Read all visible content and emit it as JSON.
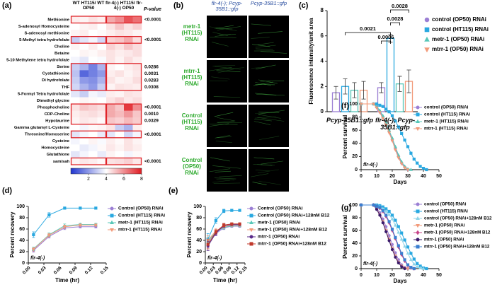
{
  "chart_data": [
    {
      "type": "heatmap",
      "panel_label": "(a)",
      "column_groups": [
        "WT HT115/ WT OP50",
        "flr-4(-) HT115/ flr-4(-) OP50"
      ],
      "p_value_header": "P-value",
      "rows": [
        "Methionine",
        "S-adenosyl Homocysteine",
        "S-adenosyl methionine",
        "5-Methyl tetra hydrofolate",
        "Choline",
        "Betaine",
        "5-10 Methylene tetra hydrofolate",
        "Serine",
        "Cystathionine",
        "Di hydrofolate",
        "THF",
        "5-Formyl Tetra hydrofolate",
        "Dimethyl glycine",
        "Phosphocholine",
        "CDP-Choline",
        "Hypotaurine",
        "Gamma glutamyl L-Cysteine",
        "Threonine/Homoserine",
        "Cysteine",
        "Homocysteine",
        "Glutathione",
        "sam/sah"
      ],
      "values": [
        [
          4.3,
          4.2,
          4.5,
          4.3,
          5.5,
          6.0,
          7.0,
          6.5
        ],
        [
          4.0,
          4.2,
          4.3,
          4.0,
          4.5,
          5.0,
          4.5,
          4.8
        ],
        [
          4.2,
          4.3,
          4.0,
          4.1,
          4.3,
          4.5,
          4.4,
          4.2
        ],
        [
          3.0,
          3.5,
          3.8,
          3.2,
          4.8,
          5.0,
          5.5,
          4.6
        ],
        [
          4.2,
          4.0,
          4.3,
          4.0,
          4.8,
          4.5,
          5.0,
          4.6
        ],
        [
          4.0,
          4.2,
          4.1,
          4.3,
          4.5,
          4.3,
          4.4,
          4.6
        ],
        [
          3.8,
          3.5,
          4.0,
          3.9,
          4.5,
          4.2,
          4.6,
          4.3
        ],
        [
          3.0,
          2.5,
          1.5,
          2.5,
          4.2,
          4.0,
          4.3,
          4.5
        ],
        [
          2.8,
          1.0,
          1.5,
          2.0,
          4.3,
          4.5,
          4.2,
          4.4
        ],
        [
          3.0,
          2.0,
          1.8,
          2.5,
          4.5,
          4.2,
          4.3,
          4.6
        ],
        [
          3.2,
          2.5,
          2.0,
          3.0,
          4.2,
          4.5,
          4.4,
          4.3
        ],
        [
          3.5,
          3.0,
          3.8,
          3.6,
          4.3,
          4.2,
          4.5,
          4.4
        ],
        [
          4.0,
          4.2,
          4.1,
          4.0,
          4.5,
          4.8,
          4.4,
          4.6
        ],
        [
          4.5,
          5.0,
          4.8,
          4.6,
          5.5,
          5.0,
          7.5,
          6.0
        ],
        [
          4.3,
          4.5,
          4.6,
          4.4,
          5.5,
          5.2,
          5.8,
          5.0
        ],
        [
          4.2,
          4.4,
          4.3,
          4.1,
          5.0,
          4.8,
          5.2,
          4.9
        ],
        [
          4.0,
          3.8,
          4.1,
          4.2,
          4.5,
          3.0,
          2.5,
          4.3
        ],
        [
          3.5,
          3.8,
          4.0,
          3.6,
          3.5,
          4.0,
          3.2,
          3.8
        ],
        [
          3.8,
          4.0,
          4.2,
          3.9,
          4.3,
          4.1,
          4.5,
          4.2
        ],
        [
          4.0,
          3.6,
          3.8,
          4.1,
          4.4,
          4.2,
          4.5,
          4.3
        ],
        [
          3.5,
          3.8,
          4.0,
          3.6,
          4.2,
          4.0,
          3.8,
          4.1
        ],
        [
          4.2,
          4.4,
          4.3,
          4.1,
          4.5,
          4.6,
          4.8,
          4.4
        ]
      ],
      "p_values": [
        "<0.0001",
        null,
        null,
        "<0.0001",
        null,
        null,
        null,
        "0.0286",
        "0.0031",
        "0.0283",
        "0.0308",
        null,
        null,
        "<0.0001",
        "0.0010",
        "0.0329",
        null,
        "<0.0001",
        null,
        null,
        null,
        "<0.0001"
      ],
      "colorbar_lim": [
        0,
        8
      ],
      "colorbar_ticks": [
        2,
        4,
        6,
        8
      ],
      "colors": [
        "#1f35d0",
        "#ffffff",
        "#e01b22"
      ],
      "highlight_color": "#e0252a"
    },
    {
      "type": "image_grid",
      "panel_label": "(b)",
      "columns": [
        "flr-4(-); Pcyp-35B1::gfp",
        "Pcyp-35B1::gfp"
      ],
      "rows": [
        "metr-1 (HT115) RNAi",
        "mtrr-1 (HT115) RNAi",
        "Control (HT115) RNAi",
        "Control (OP50) RNAi"
      ],
      "header_color": "#2b4fa0",
      "label_color": "#2eaa2e"
    },
    {
      "type": "bar",
      "panel_label": "(c)",
      "categories": [
        "Pcyp-35B1::gfp",
        "flr-4(-); Pcyp-35B1::gfp"
      ],
      "ylabel": "Fluorescence intensity/unit area",
      "ylim": [
        0,
        8
      ],
      "yticks": [
        0,
        2,
        4,
        6,
        8
      ],
      "series": [
        {
          "name": "control (OP50) RNAi",
          "color": "#9b7fd4",
          "marker": "circle",
          "values": [
            1.5,
            1.9
          ],
          "errors": [
            0.5,
            0.4
          ]
        },
        {
          "name": "control (HT115) RNAi",
          "color": "#29a8e0",
          "marker": "square",
          "values": [
            2.0,
            5.8
          ],
          "errors": [
            0.6,
            0.3
          ]
        },
        {
          "name": "metr-1 (OP50) RNAi",
          "color": "#57c7b8",
          "marker": "triangle",
          "values": [
            1.7,
            2.2
          ],
          "errors": [
            0.6,
            0.6
          ]
        },
        {
          "name": "mtrr-1 (OP50) RNAi",
          "color": "#f29a7a",
          "marker": "triangle-down",
          "values": [
            1.7,
            2.4
          ],
          "errors": [
            0.7,
            0.9
          ]
        }
      ],
      "annotations": [
        "0.0021",
        "0.0006",
        "0.0028",
        "0.0028"
      ]
    },
    {
      "type": "line",
      "panel_label": "(d)",
      "xlabel": "Time (hr)",
      "ylabel": "Percent recovery",
      "annotation": "flr-4(-)",
      "x": [
        0.01,
        0.04,
        0.07,
        0.1,
        0.13
      ],
      "xlim": [
        0,
        0.15
      ],
      "xticks": [
        {
          "value": 0,
          "label": "0.00"
        },
        {
          "value": 0.03,
          "label": "0.03"
        },
        {
          "value": 0.06,
          "label": "0.06"
        },
        {
          "value": 0.09,
          "label": "0.09"
        },
        {
          "value": 0.12,
          "label": "0.12"
        },
        {
          "value": 0.15,
          "label": "0.15"
        }
      ],
      "ylim": [
        0,
        100
      ],
      "yticks": [
        0,
        20,
        40,
        60,
        80,
        100
      ],
      "series": [
        {
          "name": "Control (OP50) RNAi",
          "color": "#9b7fd4",
          "marker": "circle",
          "values": [
            22,
            47,
            62,
            64,
            64
          ],
          "errors": [
            3,
            3,
            3,
            2,
            2
          ]
        },
        {
          "name": "Control (HT115) RNAi",
          "color": "#29a8e0",
          "marker": "square",
          "values": [
            50,
            85,
            97,
            97,
            97
          ],
          "errors": [
            5,
            4,
            2,
            2,
            2
          ]
        },
        {
          "name": "metr-1 (HT115) RNAi",
          "color": "#57c7b8",
          "marker": "triangle",
          "values": [
            25,
            50,
            66,
            68,
            68
          ],
          "errors": [
            3,
            3,
            3,
            2,
            2
          ]
        },
        {
          "name": "mtrr-1 (HT115) RNAi",
          "color": "#f29a7a",
          "marker": "triangle-down",
          "values": [
            24,
            49,
            64,
            67,
            67
          ],
          "errors": [
            3,
            3,
            3,
            2,
            2
          ]
        }
      ]
    },
    {
      "type": "line",
      "panel_label": "(e)",
      "xlabel": "Time (hr)",
      "ylabel": "Percent recovery",
      "annotation": "flr-4(-)",
      "x": [
        0.01,
        0.04,
        0.07,
        0.1,
        0.13
      ],
      "xlim": [
        0,
        0.15
      ],
      "xticks": [
        {
          "value": 0,
          "label": "0.00"
        },
        {
          "value": 0.03,
          "label": "0.03"
        },
        {
          "value": 0.06,
          "label": "0.06"
        },
        {
          "value": 0.09,
          "label": "0.09"
        },
        {
          "value": 0.12,
          "label": "0.12"
        },
        {
          "value": 0.15,
          "label": "0.15"
        }
      ],
      "ylim": [
        0,
        100
      ],
      "yticks": [
        0,
        20,
        40,
        60,
        80,
        100
      ],
      "series": [
        {
          "name": "Control (OP50) RNAi",
          "color": "#9b7fd4",
          "marker": "circle",
          "values": [
            35,
            52,
            62,
            65,
            65
          ],
          "errors": [
            8,
            4,
            3,
            2,
            2
          ]
        },
        {
          "name": "Control (OP50) RNAi+128nM B12",
          "color": "#29a8e0",
          "marker": "square",
          "values": [
            42,
            75,
            92,
            93,
            93
          ],
          "errors": [
            10,
            5,
            3,
            2,
            2
          ]
        },
        {
          "name": "metr-1 (OP50) RNAi",
          "color": "#57c7b8",
          "marker": "triangle",
          "values": [
            38,
            55,
            63,
            66,
            66
          ],
          "errors": [
            8,
            4,
            3,
            2,
            2
          ]
        },
        {
          "name": "metr-1 (OP50) RNAi+128nM B12",
          "color": "#f29a7a",
          "marker": "triangle-down",
          "values": [
            40,
            57,
            64,
            67,
            67
          ],
          "errors": [
            8,
            4,
            3,
            2,
            2
          ]
        },
        {
          "name": "mtrr-1 (OP50) RNAi",
          "color": "#5a2a8a",
          "marker": "circle",
          "values": [
            30,
            53,
            66,
            68,
            68
          ],
          "errors": [
            8,
            4,
            3,
            2,
            2
          ]
        },
        {
          "name": "mtrr-1 (OP50) RNAi+128nM B12",
          "color": "#c0392b",
          "marker": "square",
          "values": [
            33,
            55,
            67,
            69,
            69
          ],
          "errors": [
            8,
            4,
            3,
            2,
            2
          ]
        }
      ]
    },
    {
      "type": "line",
      "panel_label": "(f)",
      "xlabel": "Days",
      "ylabel": "Percent survival",
      "annotation": "flr-4(-)",
      "x": [
        0,
        8,
        10,
        12,
        14,
        16,
        18,
        20,
        22,
        24,
        26,
        28,
        30,
        32,
        34,
        36,
        38,
        40,
        42
      ],
      "xlim": [
        0,
        50
      ],
      "xticks": [
        0,
        10,
        20,
        30,
        40,
        50
      ],
      "ylim": [
        0,
        100
      ],
      "yticks": [
        0,
        20,
        40,
        60,
        80,
        100
      ],
      "series": [
        {
          "name": "control (OP50) RNAi",
          "color": "#9b7fd4",
          "marker": "circle",
          "values": [
            100,
            100,
            95,
            88,
            80,
            70,
            58,
            45,
            32,
            20,
            10,
            4,
            0,
            null,
            null,
            null,
            null,
            null,
            null
          ]
        },
        {
          "name": "control (HT115) RNAi",
          "color": "#29a8e0",
          "marker": "square",
          "values": [
            100,
            100,
            100,
            98,
            96,
            92,
            88,
            82,
            74,
            65,
            55,
            45,
            35,
            25,
            16,
            10,
            5,
            2,
            0
          ]
        },
        {
          "name": "metr-1 (HT115) RNAi",
          "color": "#57c7b8",
          "marker": "triangle",
          "values": [
            100,
            100,
            96,
            90,
            82,
            72,
            60,
            48,
            35,
            22,
            12,
            5,
            1,
            0,
            null,
            null,
            null,
            null,
            null
          ]
        },
        {
          "name": "mtrr-1 (HT115) RNAi",
          "color": "#f29a7a",
          "marker": "triangle-down",
          "values": [
            100,
            100,
            94,
            87,
            78,
            68,
            56,
            44,
            30,
            18,
            9,
            3,
            0,
            null,
            null,
            null,
            null,
            null,
            null
          ]
        }
      ]
    },
    {
      "type": "line",
      "panel_label": "(g)",
      "xlabel": "Days",
      "ylabel": "Percent survival",
      "annotation": "flr-4(-)",
      "x": [
        0,
        8,
        10,
        12,
        14,
        16,
        18,
        20,
        22,
        24,
        26,
        28,
        30,
        32,
        34,
        36,
        38,
        40,
        42
      ],
      "xlim": [
        0,
        50
      ],
      "xticks": [
        0,
        10,
        20,
        30,
        40,
        50
      ],
      "ylim": [
        0,
        100
      ],
      "yticks": [
        0,
        20,
        40,
        60,
        80,
        100
      ],
      "series": [
        {
          "name": "control (OP50) RNAi",
          "color": "#9b7fd4",
          "marker": "circle",
          "values": [
            100,
            100,
            95,
            88,
            78,
            66,
            52,
            38,
            25,
            14,
            6,
            2,
            0,
            null,
            null,
            null,
            null,
            null,
            null
          ]
        },
        {
          "name": "control (HT115) RNAi",
          "color": "#29a8e0",
          "marker": "square",
          "values": [
            100,
            100,
            100,
            99,
            97,
            94,
            90,
            84,
            76,
            66,
            56,
            45,
            34,
            24,
            15,
            8,
            4,
            1,
            0
          ]
        },
        {
          "name": "control (OP50) RNAi+128nM B12",
          "color": "#8fd4e8",
          "marker": "triangle",
          "values": [
            100,
            100,
            99,
            97,
            94,
            90,
            85,
            78,
            68,
            57,
            46,
            35,
            24,
            14,
            7,
            3,
            1,
            0,
            null
          ]
        },
        {
          "name": "metr-1 (OP50) RNAi",
          "color": "#f29a7a",
          "marker": "triangle-down",
          "values": [
            100,
            100,
            94,
            85,
            74,
            60,
            46,
            32,
            20,
            10,
            4,
            1,
            0,
            null,
            null,
            null,
            null,
            null,
            null
          ]
        },
        {
          "name": "metr-1 (OP50) RNAi+128nM B12",
          "color": "#c8458a",
          "marker": "diamond",
          "values": [
            100,
            100,
            98,
            95,
            90,
            82,
            72,
            60,
            47,
            34,
            22,
            12,
            5,
            1,
            0,
            null,
            null,
            null,
            null
          ]
        },
        {
          "name": "mtrr-1 (OP50) RNAi",
          "color": "#3a1a6a",
          "marker": "circle",
          "values": [
            100,
            100,
            93,
            84,
            72,
            58,
            44,
            30,
            18,
            9,
            3,
            0,
            null,
            null,
            null,
            null,
            null,
            null,
            null
          ]
        },
        {
          "name": "mtrr-1 (OP50) RNAi+128nM B12",
          "color": "#3b7fd0",
          "marker": "square",
          "values": [
            100,
            100,
            98,
            96,
            91,
            84,
            74,
            62,
            49,
            36,
            24,
            14,
            6,
            2,
            0,
            null,
            null,
            null,
            null
          ]
        }
      ]
    }
  ]
}
